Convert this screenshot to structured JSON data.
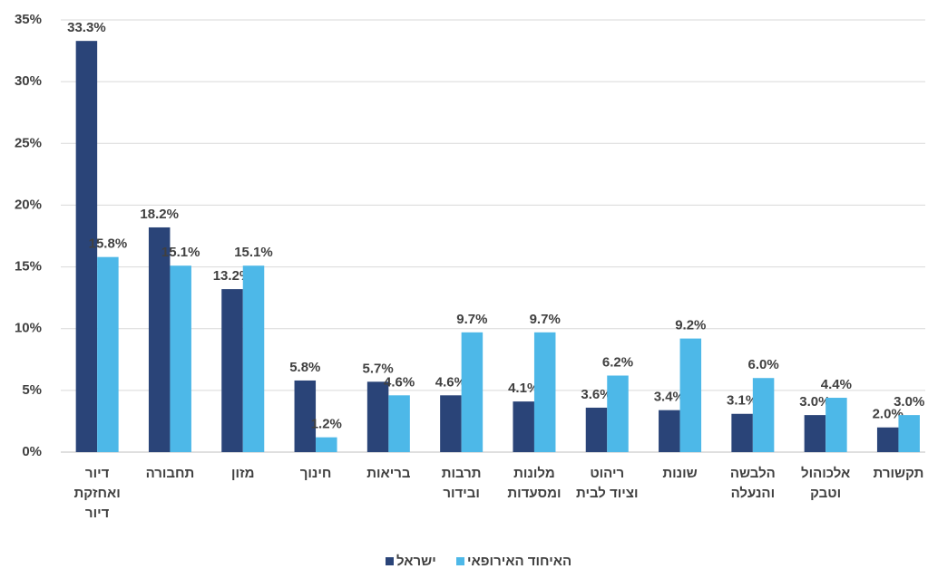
{
  "chart_data": {
    "type": "bar",
    "categories": [
      "דיור ואחזקת דיור",
      "תחבורה",
      "מזון",
      "חינוך",
      "בריאות",
      "תרבות ובידור",
      "מלונות ומסעדות",
      "ריהוט וציוד לבית",
      "שונות",
      "הלבשה והנעלה",
      "אלכוהול וטבק",
      "תקשורת"
    ],
    "series": [
      {
        "name": "ישראל",
        "color": "#2a4478",
        "values": [
          33.3,
          18.2,
          13.2,
          5.8,
          5.7,
          4.6,
          4.1,
          3.6,
          3.4,
          3.1,
          3.0,
          2.0
        ],
        "value_labels": [
          "33.3%",
          "18.2%",
          "13.2%",
          "5.8%",
          "5.7%",
          "4.6%",
          "4.1%",
          "3.6%",
          "3.4%",
          "3.1%",
          "3.0%",
          "2.0%"
        ]
      },
      {
        "name": "האיחוד האירופאי",
        "color": "#4db8e8",
        "values": [
          15.8,
          15.1,
          15.1,
          1.2,
          4.6,
          9.7,
          9.7,
          6.2,
          9.2,
          6.0,
          4.4,
          3.0
        ],
        "value_labels": [
          "15.8%",
          "15.1%",
          "15.1%",
          "1.2%",
          "4.6%",
          "9.7%",
          "9.7%",
          "6.2%",
          "9.2%",
          "6.0%",
          "4.4%",
          "3.0%"
        ]
      }
    ],
    "ylim": [
      0,
      35
    ],
    "yticks": [
      {
        "value": 0,
        "label": "0%"
      },
      {
        "value": 5,
        "label": "5%"
      },
      {
        "value": 10,
        "label": "10%"
      },
      {
        "value": 15,
        "label": "15%"
      },
      {
        "value": 20,
        "label": "20%"
      },
      {
        "value": 25,
        "label": "25%"
      },
      {
        "value": 30,
        "label": "30%"
      },
      {
        "value": 35,
        "label": "35%"
      }
    ],
    "grid": true,
    "legend": "bottom"
  }
}
